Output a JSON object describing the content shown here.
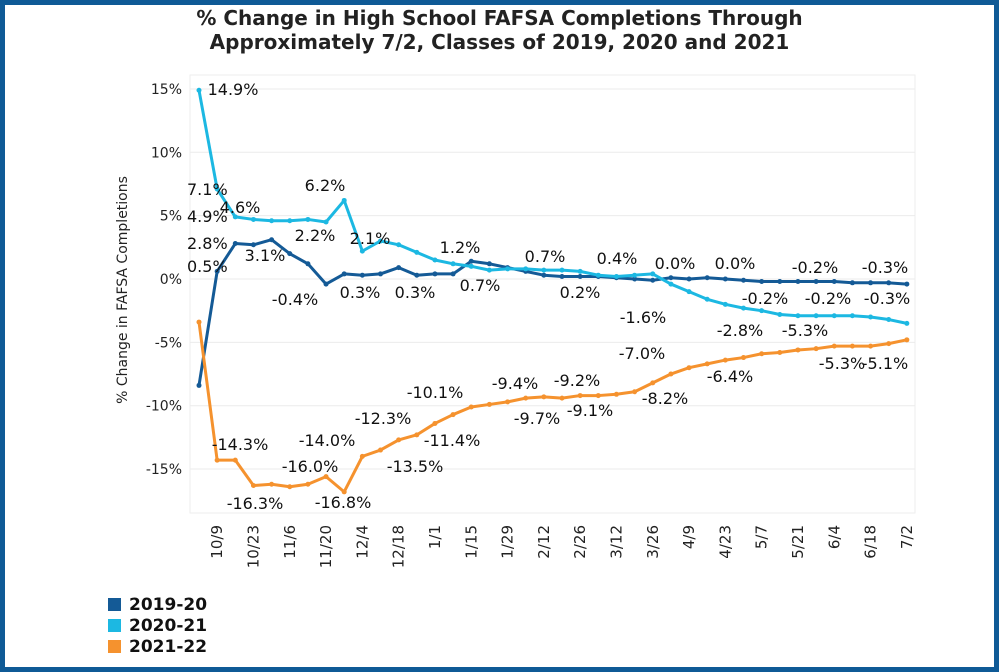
{
  "chart_data": {
    "type": "line",
    "title": "% Change in High School FAFSA Completions Through Approximately 7/2, Classes of 2019, 2020 and 2021",
    "title_lines": [
      "% Change in High School FAFSA Completions Through",
      "Approximately 7/2, Classes of 2019, 2020 and 2021"
    ],
    "ylabel": "% Change in FAFSA Completions",
    "xlabel": "",
    "ylim": [
      -18,
      16
    ],
    "yticks": [
      15,
      10,
      5,
      0,
      -5,
      -10,
      -15
    ],
    "ytick_labels": [
      "15%",
      "10%",
      "5%",
      "0%",
      "-5%",
      "-10%",
      "-15%"
    ],
    "x_tick_labels": [
      "10/9",
      "10/23",
      "11/6",
      "11/20",
      "12/4",
      "12/18",
      "1/1",
      "1/15",
      "1/29",
      "2/12",
      "2/26",
      "3/12",
      "3/26",
      "4/9",
      "4/23",
      "5/7",
      "5/21",
      "6/4",
      "6/18",
      "7/2"
    ],
    "grid": true,
    "legend_position": "bottom-left",
    "series": [
      {
        "name": "2019-20",
        "color": "#145a96",
        "values": [
          -8.4,
          0.6,
          2.8,
          2.7,
          3.1,
          2.0,
          1.2,
          -0.4,
          0.4,
          0.3,
          0.4,
          0.9,
          0.3,
          0.4,
          0.4,
          1.4,
          1.2,
          0.9,
          0.6,
          0.3,
          0.2,
          0.2,
          0.2,
          0.1,
          0.0,
          -0.1,
          0.1,
          0.0,
          0.1,
          0.0,
          -0.1,
          -0.2,
          -0.2,
          -0.2,
          -0.2,
          -0.2,
          -0.3,
          -0.3,
          -0.3,
          -0.4
        ]
      },
      {
        "name": "2020-21",
        "color": "#1cb8e2",
        "values": [
          14.9,
          7.1,
          4.9,
          4.7,
          4.6,
          4.6,
          4.7,
          4.5,
          6.2,
          2.2,
          3.0,
          2.7,
          2.1,
          1.5,
          1.2,
          1.0,
          0.7,
          0.8,
          0.8,
          0.7,
          0.7,
          0.6,
          0.3,
          0.2,
          0.3,
          0.4,
          -0.4,
          -1.0,
          -1.6,
          -2.0,
          -2.3,
          -2.5,
          -2.8,
          -2.9,
          -2.9,
          -2.9,
          -2.9,
          -3.0,
          -3.2,
          -3.5
        ]
      },
      {
        "name": "2021-22",
        "color": "#f5922e",
        "values": [
          -3.4,
          -14.3,
          -14.3,
          -16.3,
          -16.2,
          -16.4,
          -16.2,
          -15.6,
          -16.8,
          -14.0,
          -13.5,
          -12.7,
          -12.3,
          -11.4,
          -10.7,
          -10.1,
          -9.9,
          -9.7,
          -9.4,
          -9.3,
          -9.4,
          -9.2,
          -9.2,
          -9.1,
          -8.9,
          -8.2,
          -7.5,
          -7.0,
          -6.7,
          -6.4,
          -6.2,
          -5.9,
          -5.8,
          -5.6,
          -5.5,
          -5.3,
          -5.3,
          -5.3,
          -5.1,
          -4.8
        ]
      }
    ],
    "data_labels": [
      "14.9%",
      "7.1%",
      "4.9%",
      "4.6%",
      "6.2%",
      "2.2%",
      "2.1%",
      "1.2%",
      "0.7%",
      "0.4%",
      "0.2%",
      "-1.6%",
      "-0.2%",
      "-0.2%",
      "-0.3%",
      "-2.8%",
      "-5.3%",
      "2.8%",
      "0.5%",
      "3.1%",
      "-0.4%",
      "0.3%",
      "0.3%",
      "0.7%",
      "0.0%",
      "0.0%",
      "-0.2%",
      "-0.3%",
      "-14.3%",
      "-16.3%",
      "-16.0%",
      "-14.0%",
      "-16.8%",
      "-12.3%",
      "-13.5%",
      "-10.1%",
      "-11.4%",
      "-9.4%",
      "-9.7%",
      "-9.2%",
      "-9.1%",
      "-7.0%",
      "-8.2%",
      "-6.4%",
      "-5.3%",
      "-5.1%"
    ]
  }
}
